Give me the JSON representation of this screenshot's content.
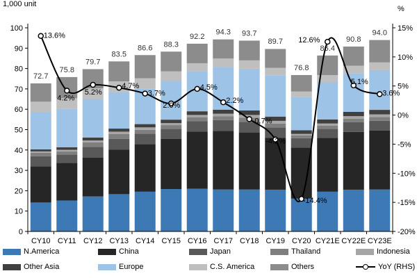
{
  "axis_units": {
    "left": "1,000 unit",
    "right": "%"
  },
  "chart_data": {
    "type": "bar",
    "stacked": true,
    "categories": [
      "CY10",
      "CY11",
      "CY12",
      "CY13",
      "CY14",
      "CY15",
      "CY16",
      "CY17",
      "CY18",
      "CY19",
      "CY20",
      "CY21E",
      "CY22E",
      "CY23E"
    ],
    "ylim": [
      0,
      100
    ],
    "y2lim": [
      -20,
      15
    ],
    "yticks": [
      0,
      10,
      20,
      30,
      40,
      50,
      60,
      70,
      80,
      90,
      100
    ],
    "y2ticks": [
      "-20%",
      "-15%",
      "-10%",
      "-5%",
      "0%",
      "5%",
      "10%",
      "15%"
    ],
    "y2tick_values": [
      -20,
      -15,
      -10,
      -5,
      0,
      5,
      10,
      15
    ],
    "grid": false,
    "legend_position": "bottom",
    "totals": [
      72.7,
      75.8,
      79.7,
      83.5,
      86.6,
      88.3,
      92.2,
      94.3,
      93.7,
      89.7,
      76.8,
      86.4,
      90.8,
      94.0
    ],
    "totals_labels": [
      "72.7",
      "75.8",
      "79.7",
      "83.5",
      "86.6",
      "88.3",
      "92.2",
      "94.3",
      "93.7",
      "89.7",
      "76.8",
      "86.4",
      "90.8",
      "94.0"
    ],
    "series": [
      {
        "name": "N.America",
        "color": "#3d7ab5",
        "values": [
          14.2,
          15.2,
          17.2,
          18.3,
          19.5,
          20.8,
          21.0,
          20.6,
          20.6,
          20.5,
          16.1,
          19.5,
          20.5,
          20.6
        ]
      },
      {
        "name": "China",
        "color": "#262626",
        "values": [
          17.8,
          18.4,
          19.1,
          21.8,
          23.4,
          24.6,
          28.0,
          28.8,
          28.0,
          25.4,
          25.1,
          26.5,
          28.4,
          28.9
        ]
      },
      {
        "name": "Japan",
        "color": "#595959",
        "values": [
          4.9,
          4.2,
          5.2,
          5.4,
          5.1,
          5.0,
          5.2,
          5.3,
          5.2,
          5.1,
          4.6,
          4.4,
          4.7,
          4.8
        ]
      },
      {
        "name": "Thailand",
        "color": "#7f7f7f",
        "values": [
          1.7,
          1.5,
          2.2,
          2.3,
          1.9,
          1.8,
          1.9,
          1.9,
          2.1,
          2.0,
          1.4,
          1.6,
          1.8,
          1.9
        ]
      },
      {
        "name": "Indonesia",
        "color": "#a6a6a6",
        "values": [
          0.7,
          0.8,
          1.0,
          1.2,
          1.2,
          1.0,
          1.1,
          1.2,
          1.3,
          1.3,
          0.7,
          1.0,
          1.2,
          1.3
        ]
      },
      {
        "name": "Other Asia",
        "color": "#404040",
        "values": [
          1.0,
          1.2,
          1.4,
          1.5,
          1.6,
          1.7,
          1.8,
          2.0,
          2.2,
          2.1,
          1.8,
          2.0,
          2.1,
          2.2
        ]
      },
      {
        "name": "Europe",
        "color": "#9dc3e6",
        "values": [
          18.4,
          18.9,
          18.9,
          17.9,
          17.5,
          19.0,
          19.7,
          20.9,
          20.5,
          20.3,
          16.2,
          18.2,
          19.0,
          19.5
        ]
      },
      {
        "name": "C.S. America",
        "color": "#bfbfbf",
        "values": [
          5.0,
          5.2,
          5.3,
          5.3,
          5.0,
          4.7,
          3.9,
          4.2,
          4.1,
          3.6,
          2.8,
          3.6,
          3.7,
          3.8
        ]
      },
      {
        "name": "Others",
        "color": "#8c8c8c",
        "values": [
          9.0,
          10.4,
          9.4,
          9.8,
          11.4,
          9.7,
          9.6,
          9.4,
          9.7,
          9.3,
          8.1,
          9.6,
          9.4,
          11.0
        ]
      }
    ],
    "line_series": {
      "name": "YoY (RHS)",
      "values": [
        13.6,
        4.2,
        5.2,
        4.7,
        3.7,
        2.0,
        4.5,
        2.2,
        -0.7,
        -4.2,
        -14.4,
        12.6,
        5.1,
        3.6
      ],
      "labels": [
        "13.6%",
        "4.2%",
        "5.2%",
        "4.7%",
        "3.7%",
        "2.0%",
        "4.5%",
        "2.2%",
        "-0.7%",
        "-4.2%",
        "-14.4%",
        "12.6%",
        "5.1%",
        "3.6%"
      ]
    }
  }
}
